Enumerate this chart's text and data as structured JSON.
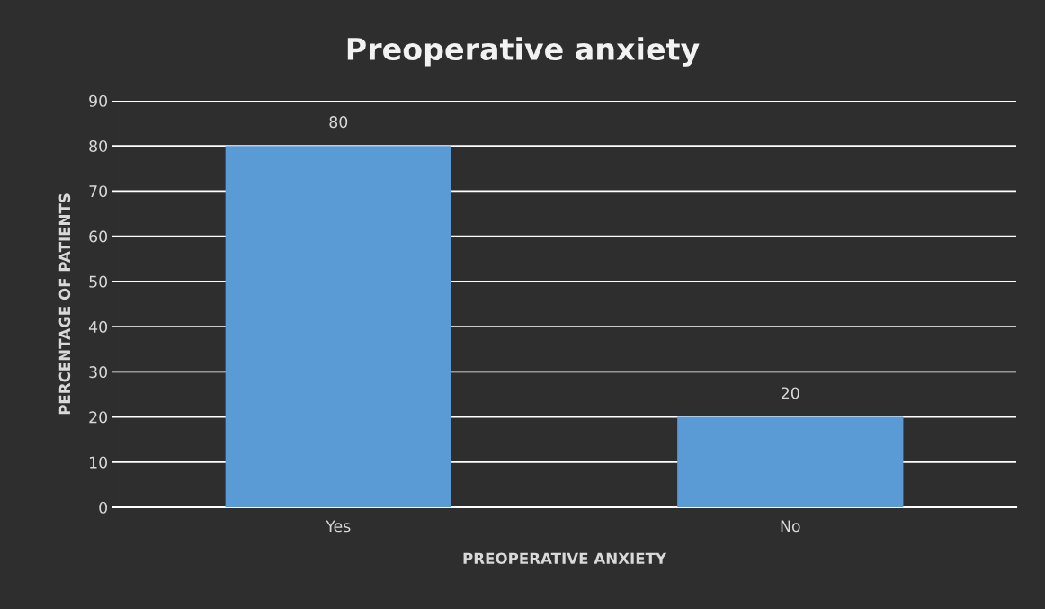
{
  "chart_data": {
    "type": "bar",
    "title": "Preoperative anxiety",
    "xlabel": "PREOPERATIVE ANXIETY",
    "ylabel": "PERCENTAGE OF PATIENTS",
    "categories": [
      "Yes",
      "No"
    ],
    "values": [
      80,
      20
    ],
    "color": "#5b9bd5",
    "ylim": [
      0,
      90
    ],
    "yticks": [
      0,
      10,
      20,
      30,
      40,
      50,
      60,
      70,
      80,
      90
    ],
    "grid": "y",
    "data_labels": true
  }
}
